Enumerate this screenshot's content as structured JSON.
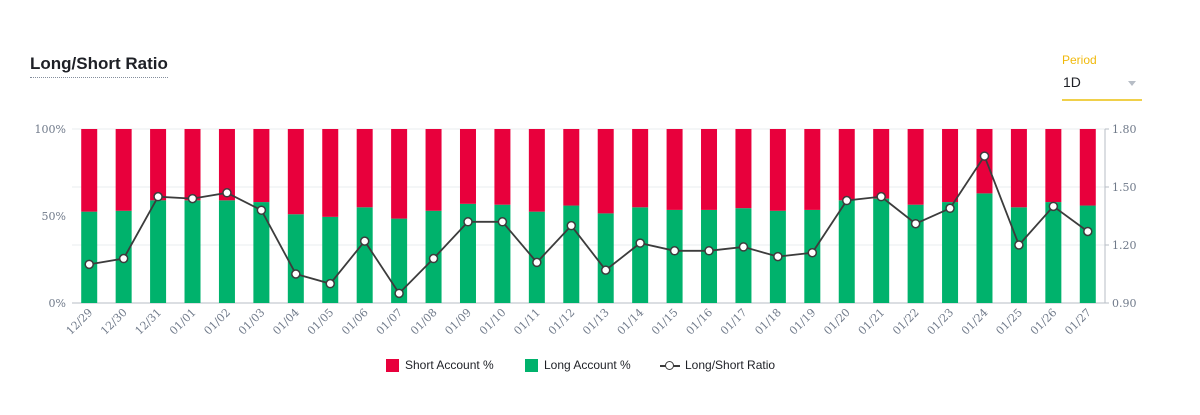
{
  "header": {
    "title": "Long/Short Ratio"
  },
  "period": {
    "label": "Period",
    "value": "1D"
  },
  "colors": {
    "short": "#e8003c",
    "long": "#00b26c",
    "line": "#3c3c3c",
    "grid": "#eaecef"
  },
  "legend": {
    "short_label": "Short Account %",
    "long_label": "Long Account %",
    "ratio_label": "Long/Short Ratio"
  },
  "chart_data": {
    "type": "bar",
    "title": "Long/Short Ratio",
    "categories": [
      "12/29",
      "12/30",
      "12/31",
      "01/01",
      "01/02",
      "01/03",
      "01/04",
      "01/05",
      "01/06",
      "01/07",
      "01/08",
      "01/09",
      "01/10",
      "01/11",
      "01/12",
      "01/13",
      "01/14",
      "01/15",
      "01/16",
      "01/17",
      "01/18",
      "01/19",
      "01/20",
      "01/21",
      "01/22",
      "01/23",
      "01/24",
      "01/25",
      "01/26",
      "01/27"
    ],
    "series": [
      {
        "name": "Short Account %",
        "values": [
          47.5,
          47,
          41,
          41,
          41,
          42,
          49,
          50.5,
          45,
          51.5,
          47,
          43,
          43.5,
          47.5,
          44,
          48.5,
          45,
          46.5,
          46.5,
          45.5,
          47,
          46.5,
          41,
          40,
          43.5,
          42,
          37,
          45,
          42,
          44
        ]
      },
      {
        "name": "Long Account %",
        "values": [
          52.5,
          53,
          59,
          59,
          59,
          58,
          51,
          49.5,
          55,
          48.5,
          53,
          57,
          56.5,
          52.5,
          56,
          51.5,
          55,
          53.5,
          53.5,
          54.5,
          53,
          53.5,
          59,
          60,
          56.5,
          58,
          63,
          55,
          58,
          56
        ]
      },
      {
        "name": "Long/Short Ratio",
        "axis": "right",
        "values": [
          1.1,
          1.13,
          1.45,
          1.44,
          1.47,
          1.38,
          1.05,
          1.0,
          1.22,
          0.95,
          1.13,
          1.32,
          1.32,
          1.11,
          1.3,
          1.07,
          1.21,
          1.17,
          1.17,
          1.19,
          1.14,
          1.16,
          1.43,
          1.45,
          1.31,
          1.39,
          1.66,
          1.2,
          1.4,
          1.27
        ]
      }
    ],
    "stacked": true,
    "ylim": [
      0,
      100
    ],
    "y_ticks": [
      "0%",
      "50%",
      "100%"
    ],
    "y2lim": [
      0.9,
      1.8
    ],
    "y2_ticks": [
      "0.90",
      "1.20",
      "1.50",
      "1.80"
    ],
    "xlabel": "",
    "ylabel": "",
    "grid": true,
    "legend_position": "bottom"
  }
}
